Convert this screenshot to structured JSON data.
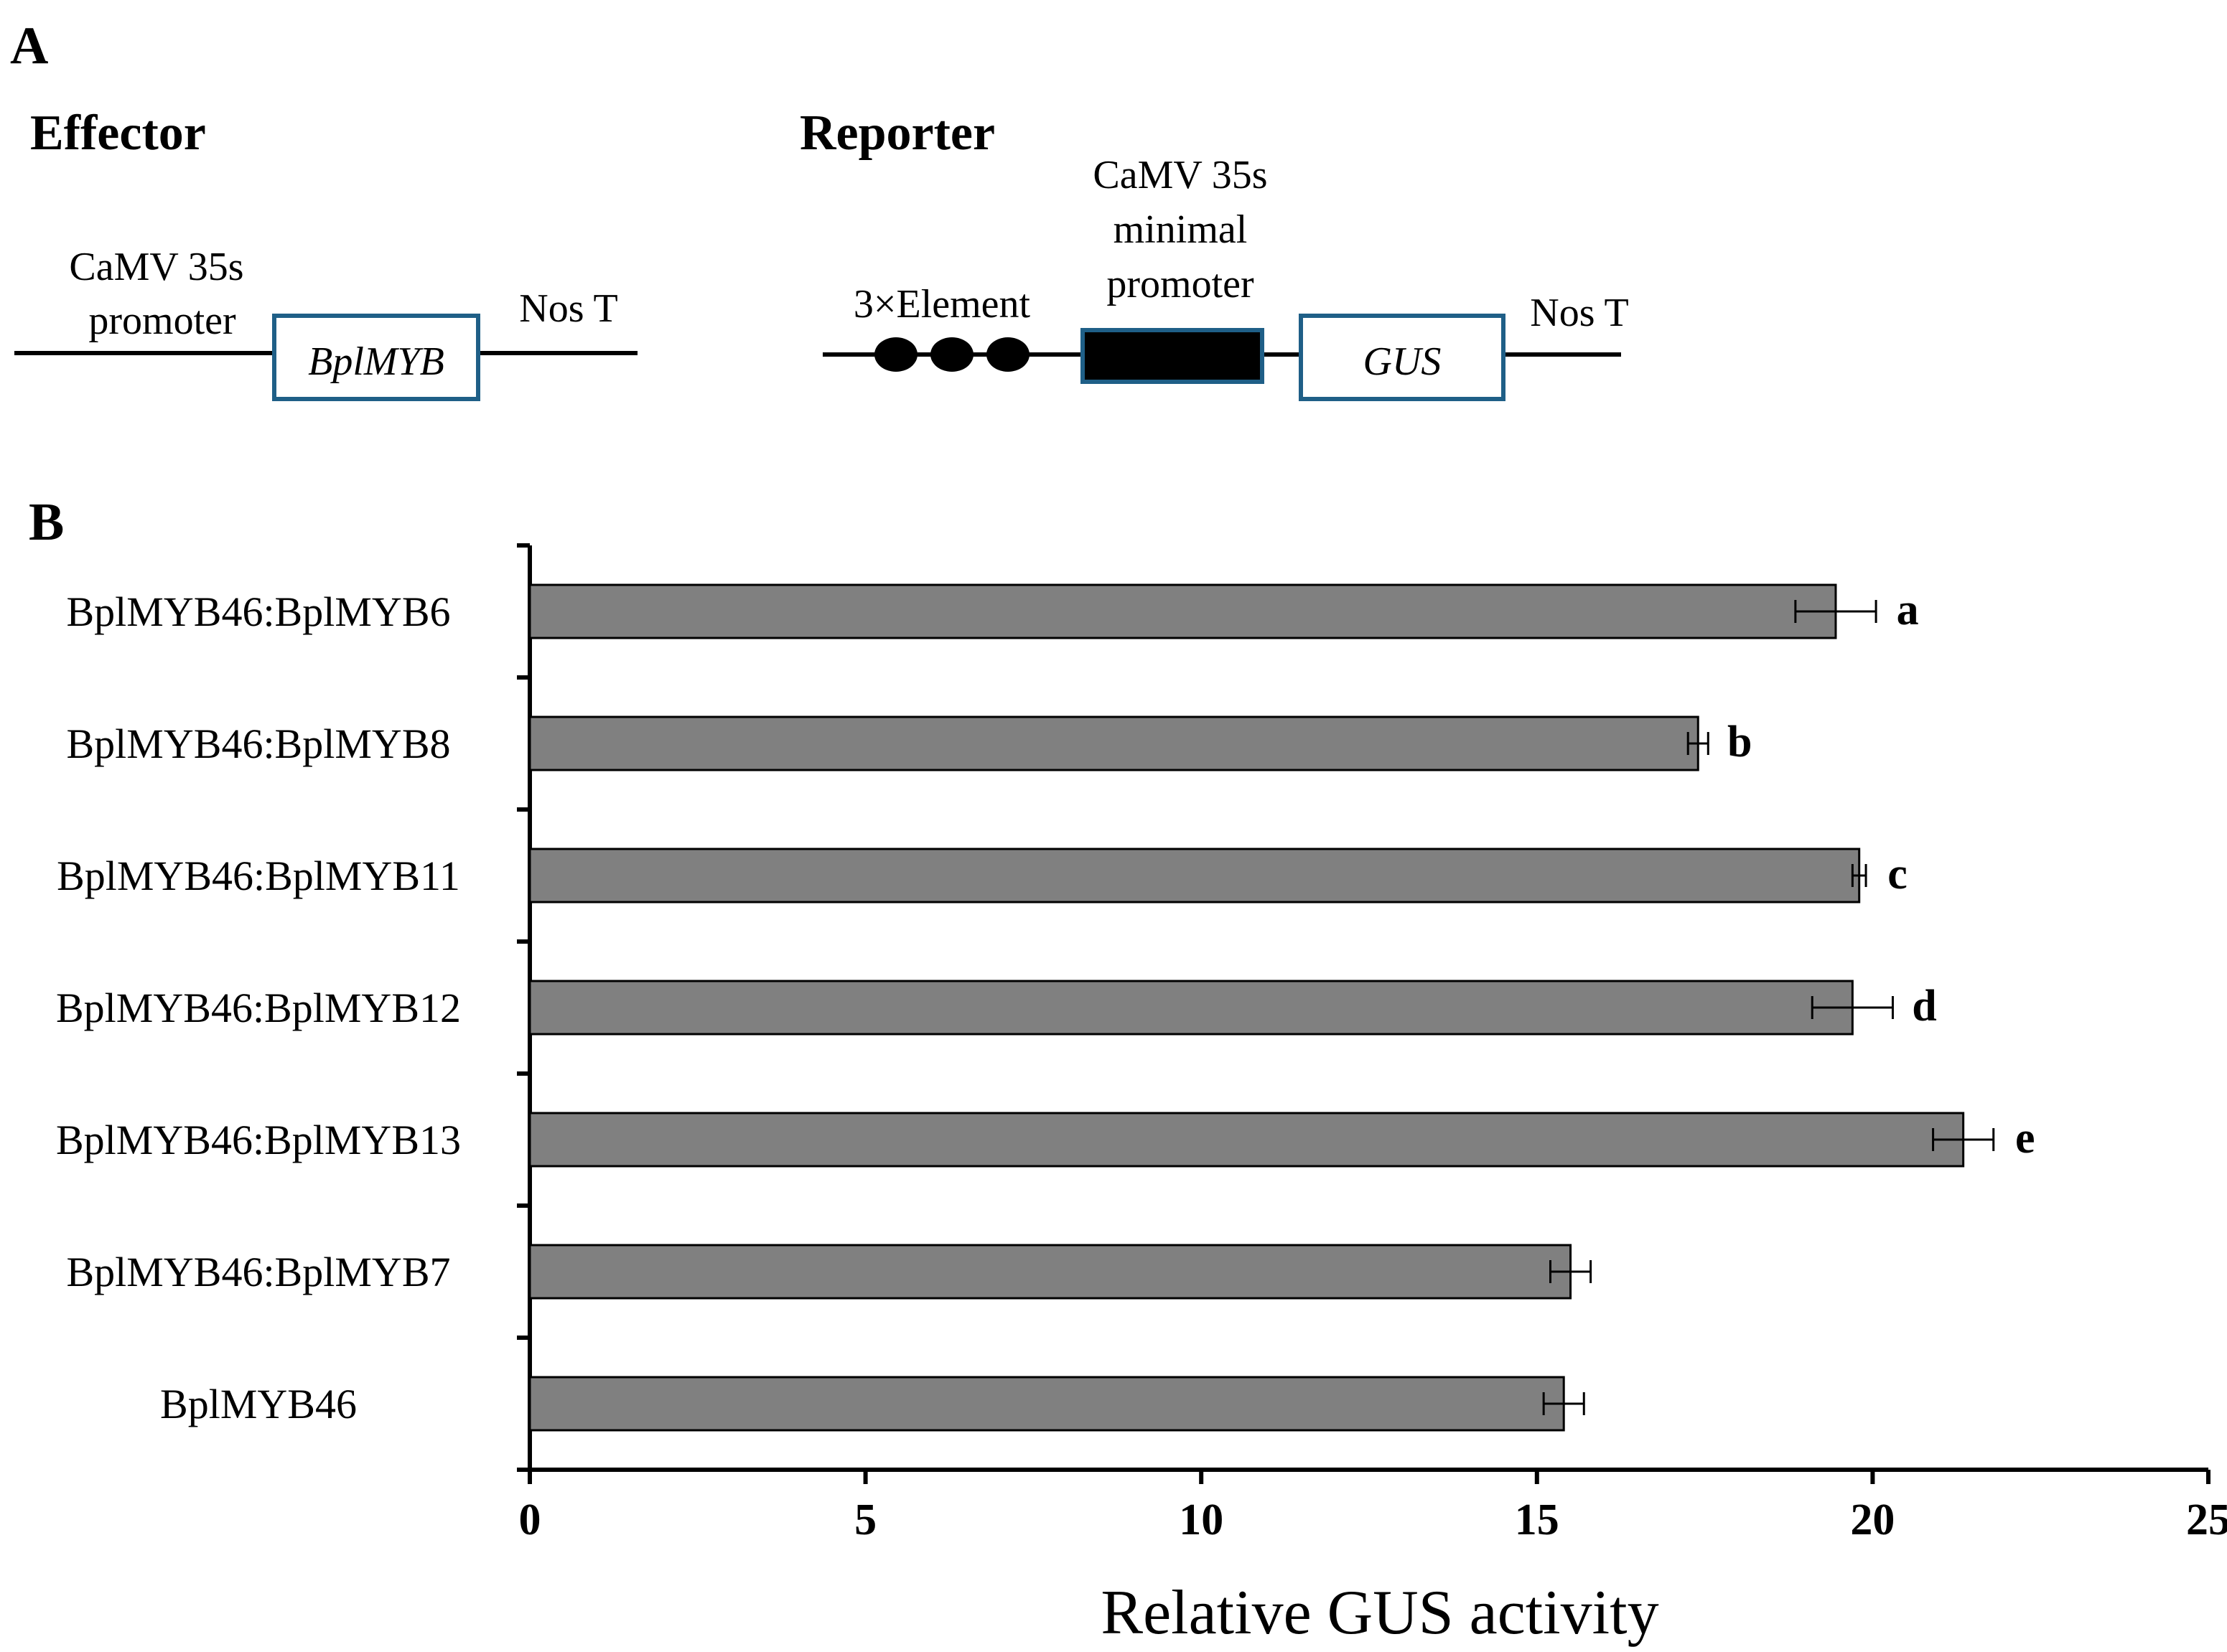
{
  "panel_a": {
    "label": "A",
    "effector": {
      "heading": "Effector",
      "promoter_line1": "CaMV 35s",
      "promoter_line2": "promoter",
      "gene": "BplMYB",
      "terminator": "Nos T"
    },
    "reporter": {
      "heading": "Reporter",
      "element_label": "3×Element",
      "min_promoter_line1": "CaMV 35s",
      "min_promoter_line2": "minimal",
      "min_promoter_line3": "promoter",
      "gene": "GUS",
      "terminator": "Nos T"
    },
    "colors": {
      "box_outline": "#1f5f87",
      "line": "#000000",
      "fill_dark": "#000000"
    }
  },
  "panel_b": {
    "label": "B"
  },
  "chart_data": {
    "type": "bar",
    "orientation": "horizontal",
    "xlabel": "Relative GUS activity",
    "ylabel": "",
    "xlim": [
      0,
      25
    ],
    "xticks": [
      0,
      5,
      10,
      15,
      20,
      25
    ],
    "grid": false,
    "bar_color": "#808080",
    "categories": [
      "BplMYB46:BplMYB6",
      "BplMYB46:BplMYB8",
      "BplMYB46:BplMYB11",
      "BplMYB46:BplMYB12",
      "BplMYB46:BplMYB13",
      "BplMYB46:BplMYB7",
      "BplMYB46"
    ],
    "values": [
      19.45,
      17.4,
      19.8,
      19.7,
      21.35,
      15.5,
      15.4
    ],
    "errors": [
      0.6,
      0.15,
      0.1,
      0.6,
      0.45,
      0.3,
      0.3
    ],
    "significance": [
      "a",
      "b",
      "c",
      "d",
      "e",
      "",
      ""
    ]
  }
}
